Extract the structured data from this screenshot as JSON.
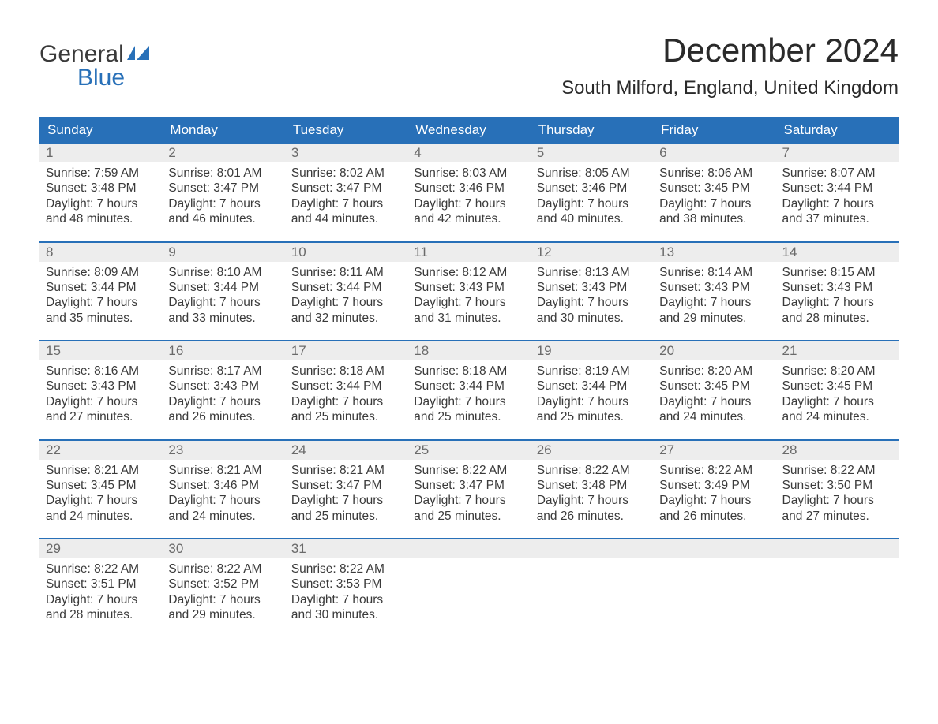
{
  "logo": {
    "top": "General",
    "bottom": "Blue"
  },
  "title": "December 2024",
  "location": "South Milford, England, United Kingdom",
  "header_bg": "#2870b8",
  "dow": [
    "Sunday",
    "Monday",
    "Tuesday",
    "Wednesday",
    "Thursday",
    "Friday",
    "Saturday"
  ],
  "weeks": [
    [
      {
        "n": "1",
        "sr": "Sunrise: 7:59 AM",
        "ss": "Sunset: 3:48 PM",
        "d1": "Daylight: 7 hours",
        "d2": "and 48 minutes."
      },
      {
        "n": "2",
        "sr": "Sunrise: 8:01 AM",
        "ss": "Sunset: 3:47 PM",
        "d1": "Daylight: 7 hours",
        "d2": "and 46 minutes."
      },
      {
        "n": "3",
        "sr": "Sunrise: 8:02 AM",
        "ss": "Sunset: 3:47 PM",
        "d1": "Daylight: 7 hours",
        "d2": "and 44 minutes."
      },
      {
        "n": "4",
        "sr": "Sunrise: 8:03 AM",
        "ss": "Sunset: 3:46 PM",
        "d1": "Daylight: 7 hours",
        "d2": "and 42 minutes."
      },
      {
        "n": "5",
        "sr": "Sunrise: 8:05 AM",
        "ss": "Sunset: 3:46 PM",
        "d1": "Daylight: 7 hours",
        "d2": "and 40 minutes."
      },
      {
        "n": "6",
        "sr": "Sunrise: 8:06 AM",
        "ss": "Sunset: 3:45 PM",
        "d1": "Daylight: 7 hours",
        "d2": "and 38 minutes."
      },
      {
        "n": "7",
        "sr": "Sunrise: 8:07 AM",
        "ss": "Sunset: 3:44 PM",
        "d1": "Daylight: 7 hours",
        "d2": "and 37 minutes."
      }
    ],
    [
      {
        "n": "8",
        "sr": "Sunrise: 8:09 AM",
        "ss": "Sunset: 3:44 PM",
        "d1": "Daylight: 7 hours",
        "d2": "and 35 minutes."
      },
      {
        "n": "9",
        "sr": "Sunrise: 8:10 AM",
        "ss": "Sunset: 3:44 PM",
        "d1": "Daylight: 7 hours",
        "d2": "and 33 minutes."
      },
      {
        "n": "10",
        "sr": "Sunrise: 8:11 AM",
        "ss": "Sunset: 3:44 PM",
        "d1": "Daylight: 7 hours",
        "d2": "and 32 minutes."
      },
      {
        "n": "11",
        "sr": "Sunrise: 8:12 AM",
        "ss": "Sunset: 3:43 PM",
        "d1": "Daylight: 7 hours",
        "d2": "and 31 minutes."
      },
      {
        "n": "12",
        "sr": "Sunrise: 8:13 AM",
        "ss": "Sunset: 3:43 PM",
        "d1": "Daylight: 7 hours",
        "d2": "and 30 minutes."
      },
      {
        "n": "13",
        "sr": "Sunrise: 8:14 AM",
        "ss": "Sunset: 3:43 PM",
        "d1": "Daylight: 7 hours",
        "d2": "and 29 minutes."
      },
      {
        "n": "14",
        "sr": "Sunrise: 8:15 AM",
        "ss": "Sunset: 3:43 PM",
        "d1": "Daylight: 7 hours",
        "d2": "and 28 minutes."
      }
    ],
    [
      {
        "n": "15",
        "sr": "Sunrise: 8:16 AM",
        "ss": "Sunset: 3:43 PM",
        "d1": "Daylight: 7 hours",
        "d2": "and 27 minutes."
      },
      {
        "n": "16",
        "sr": "Sunrise: 8:17 AM",
        "ss": "Sunset: 3:43 PM",
        "d1": "Daylight: 7 hours",
        "d2": "and 26 minutes."
      },
      {
        "n": "17",
        "sr": "Sunrise: 8:18 AM",
        "ss": "Sunset: 3:44 PM",
        "d1": "Daylight: 7 hours",
        "d2": "and 25 minutes."
      },
      {
        "n": "18",
        "sr": "Sunrise: 8:18 AM",
        "ss": "Sunset: 3:44 PM",
        "d1": "Daylight: 7 hours",
        "d2": "and 25 minutes."
      },
      {
        "n": "19",
        "sr": "Sunrise: 8:19 AM",
        "ss": "Sunset: 3:44 PM",
        "d1": "Daylight: 7 hours",
        "d2": "and 25 minutes."
      },
      {
        "n": "20",
        "sr": "Sunrise: 8:20 AM",
        "ss": "Sunset: 3:45 PM",
        "d1": "Daylight: 7 hours",
        "d2": "and 24 minutes."
      },
      {
        "n": "21",
        "sr": "Sunrise: 8:20 AM",
        "ss": "Sunset: 3:45 PM",
        "d1": "Daylight: 7 hours",
        "d2": "and 24 minutes."
      }
    ],
    [
      {
        "n": "22",
        "sr": "Sunrise: 8:21 AM",
        "ss": "Sunset: 3:45 PM",
        "d1": "Daylight: 7 hours",
        "d2": "and 24 minutes."
      },
      {
        "n": "23",
        "sr": "Sunrise: 8:21 AM",
        "ss": "Sunset: 3:46 PM",
        "d1": "Daylight: 7 hours",
        "d2": "and 24 minutes."
      },
      {
        "n": "24",
        "sr": "Sunrise: 8:21 AM",
        "ss": "Sunset: 3:47 PM",
        "d1": "Daylight: 7 hours",
        "d2": "and 25 minutes."
      },
      {
        "n": "25",
        "sr": "Sunrise: 8:22 AM",
        "ss": "Sunset: 3:47 PM",
        "d1": "Daylight: 7 hours",
        "d2": "and 25 minutes."
      },
      {
        "n": "26",
        "sr": "Sunrise: 8:22 AM",
        "ss": "Sunset: 3:48 PM",
        "d1": "Daylight: 7 hours",
        "d2": "and 26 minutes."
      },
      {
        "n": "27",
        "sr": "Sunrise: 8:22 AM",
        "ss": "Sunset: 3:49 PM",
        "d1": "Daylight: 7 hours",
        "d2": "and 26 minutes."
      },
      {
        "n": "28",
        "sr": "Sunrise: 8:22 AM",
        "ss": "Sunset: 3:50 PM",
        "d1": "Daylight: 7 hours",
        "d2": "and 27 minutes."
      }
    ],
    [
      {
        "n": "29",
        "sr": "Sunrise: 8:22 AM",
        "ss": "Sunset: 3:51 PM",
        "d1": "Daylight: 7 hours",
        "d2": "and 28 minutes."
      },
      {
        "n": "30",
        "sr": "Sunrise: 8:22 AM",
        "ss": "Sunset: 3:52 PM",
        "d1": "Daylight: 7 hours",
        "d2": "and 29 minutes."
      },
      {
        "n": "31",
        "sr": "Sunrise: 8:22 AM",
        "ss": "Sunset: 3:53 PM",
        "d1": "Daylight: 7 hours",
        "d2": "and 30 minutes."
      },
      {
        "n": "",
        "sr": "",
        "ss": "",
        "d1": "",
        "d2": ""
      },
      {
        "n": "",
        "sr": "",
        "ss": "",
        "d1": "",
        "d2": ""
      },
      {
        "n": "",
        "sr": "",
        "ss": "",
        "d1": "",
        "d2": ""
      },
      {
        "n": "",
        "sr": "",
        "ss": "",
        "d1": "",
        "d2": ""
      }
    ]
  ]
}
